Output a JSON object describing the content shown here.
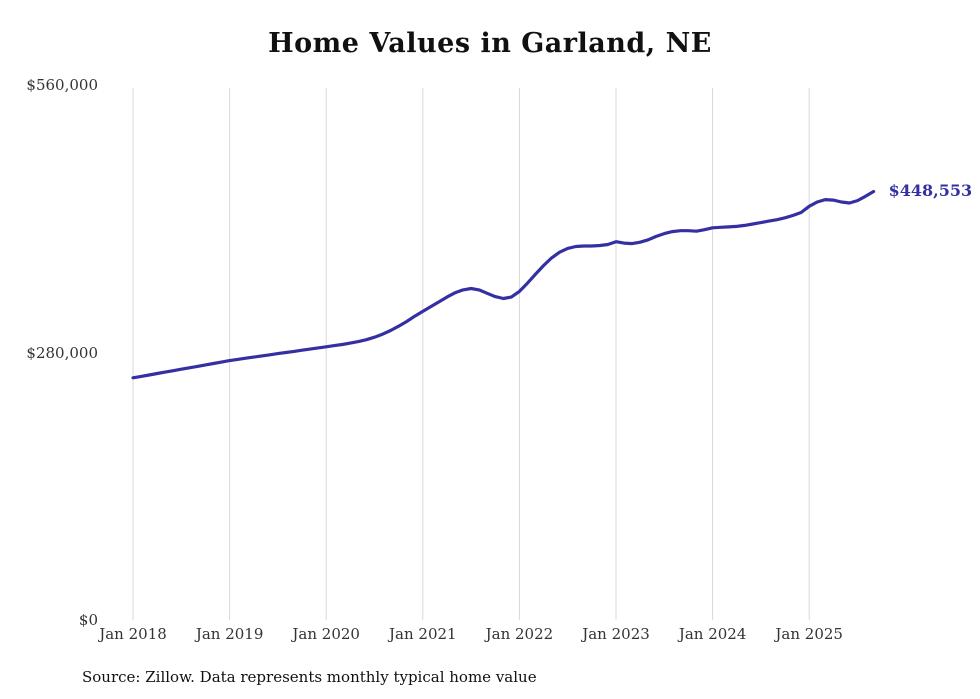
{
  "chart": {
    "title": "Home Values in Garland, NE",
    "end_label": "$448,553",
    "source": "Source: Zillow. Data represents monthly typical home value",
    "line_color": "#3430a3",
    "grid_color": "#d8d8d8",
    "text_color": "#333333"
  },
  "chart_data": {
    "type": "line",
    "title": "Home Values in Garland, NE",
    "xlabel": "",
    "ylabel": "",
    "x_start": "2018-01",
    "x_end": "2025-09",
    "x_tick_labels": [
      "Jan 2018",
      "Jan 2019",
      "Jan 2020",
      "Jan 2021",
      "Jan 2022",
      "Jan 2023",
      "Jan 2024",
      "Jan 2025"
    ],
    "y_tick_values": [
      0,
      280000,
      560000
    ],
    "y_tick_labels": [
      "$0",
      "$280,000",
      "$560,000"
    ],
    "ylim": [
      0,
      560000
    ],
    "grid": "vertical-only",
    "legend": "none",
    "end_value": 448553,
    "end_value_label": "$448,553",
    "source": "Source: Zillow. Data represents monthly typical home value",
    "series": [
      {
        "name": "Typical home value",
        "color": "#3430a3",
        "values": [
          253500,
          255000,
          256500,
          258000,
          259500,
          261000,
          262500,
          264000,
          265500,
          267000,
          268500,
          270000,
          271500,
          272800,
          274000,
          275200,
          276400,
          277600,
          278800,
          280000,
          281200,
          282400,
          283600,
          284800,
          286000,
          287200,
          288400,
          289800,
          291400,
          293400,
          296000,
          299200,
          303000,
          307500,
          312500,
          318000,
          323000,
          328000,
          333000,
          338000,
          342500,
          345500,
          347000,
          345500,
          342000,
          338500,
          336500,
          338000,
          344000,
          352500,
          362000,
          371000,
          379000,
          385000,
          389000,
          391000,
          391500,
          391500,
          392000,
          393000,
          396000,
          394500,
          394000,
          395500,
          398000,
          401500,
          404500,
          406500,
          407500,
          407500,
          407000,
          408500,
          410500,
          411000,
          411500,
          412000,
          413000,
          414500,
          416000,
          417500,
          419000,
          421000,
          423500,
          426500,
          433000,
          437500,
          440000,
          439500,
          437500,
          436500,
          439000,
          443500,
          448553
        ]
      }
    ]
  }
}
